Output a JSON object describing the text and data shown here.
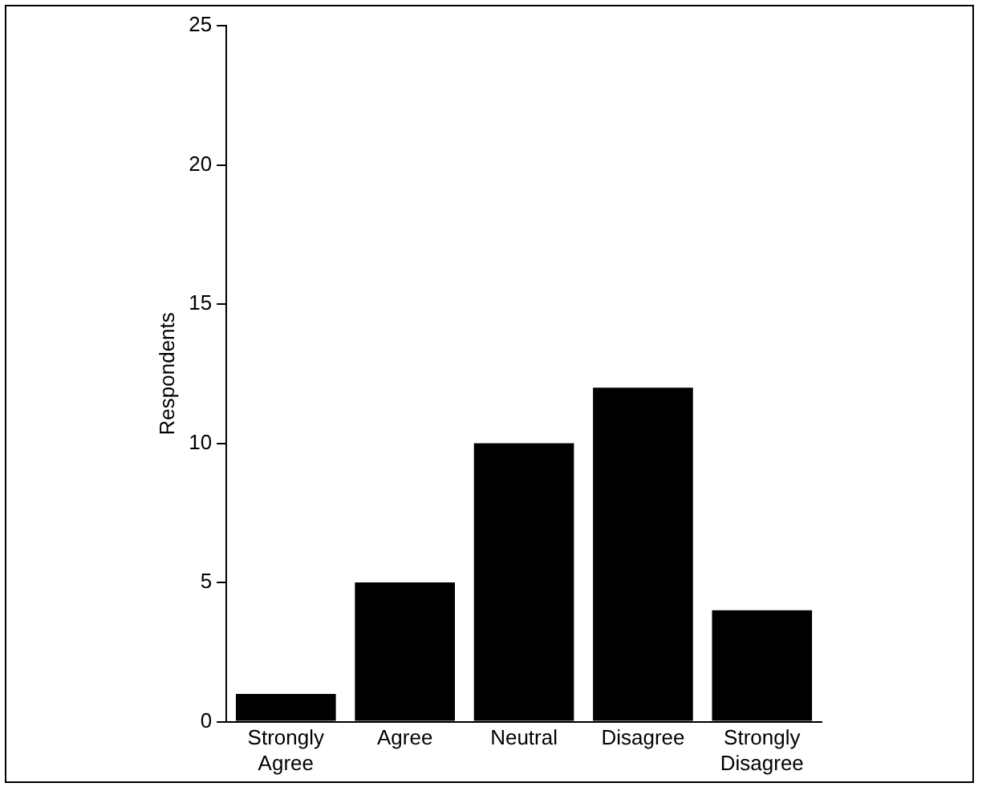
{
  "chart_data": {
    "type": "bar",
    "ylabel": "Respondents",
    "categories": [
      "Strongly Agree",
      "Agree",
      "Neutral",
      "Disagree",
      "Strongly Disagree"
    ],
    "values": [
      1,
      5,
      10,
      12,
      4
    ],
    "color": "#000000",
    "ylim": [
      0,
      25
    ],
    "yticks": [
      0,
      5,
      10,
      15,
      20,
      25
    ],
    "grid": false,
    "legend": false
  }
}
